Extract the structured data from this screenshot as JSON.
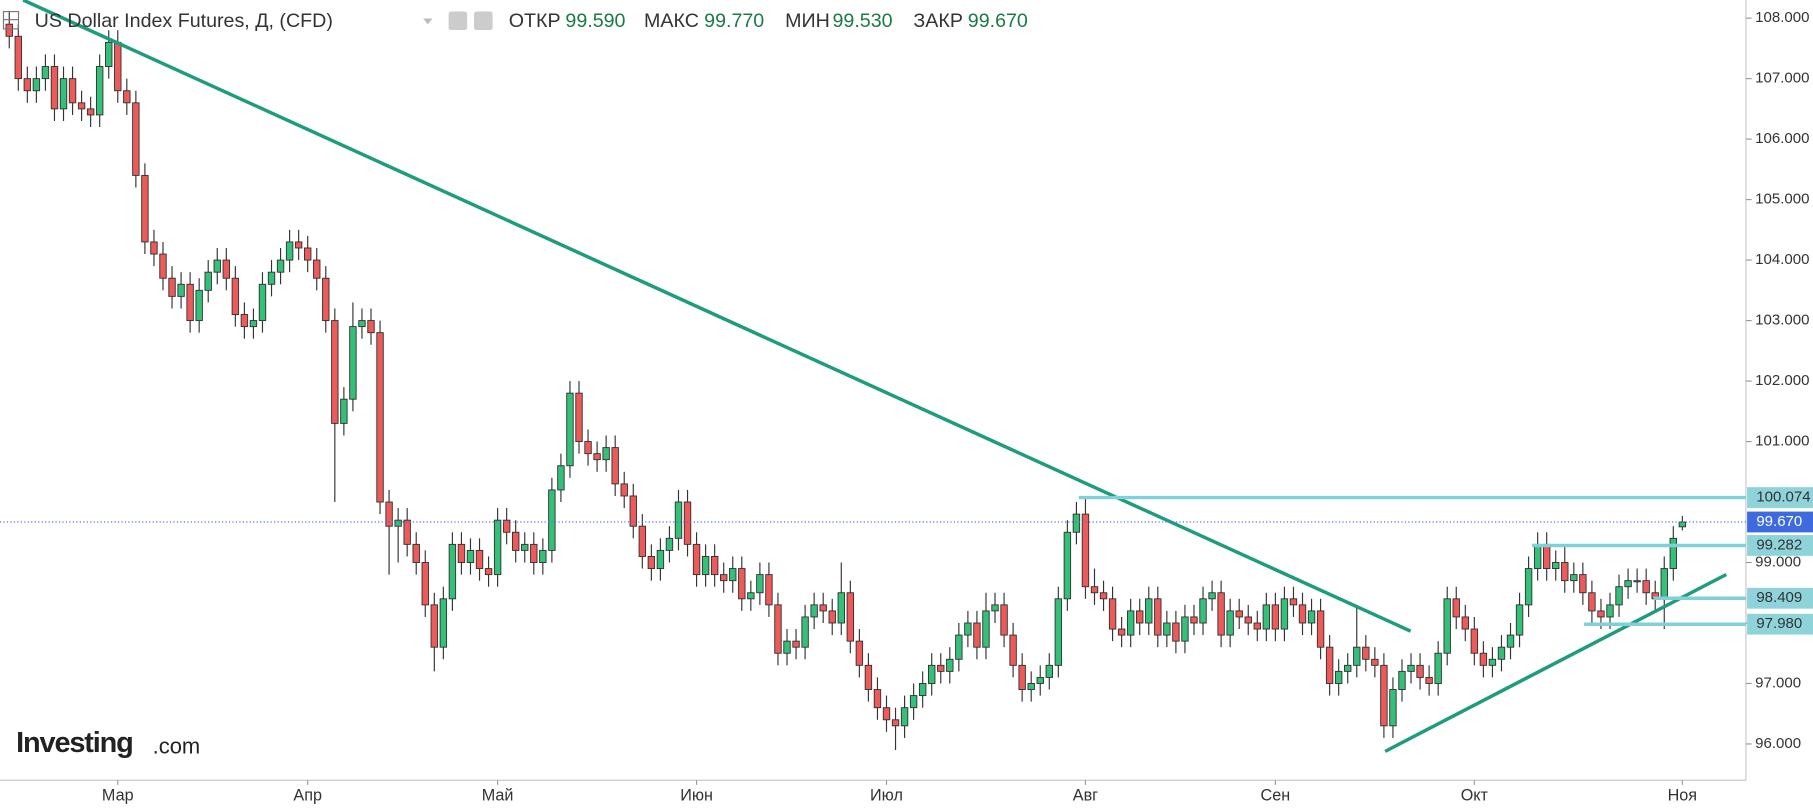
{
  "header": {
    "title": "US Dollar Index Futures, Д, (CFD)",
    "open_label": "ОТКР",
    "open": "99.590",
    "high_label": "МАКС",
    "high": "99.770",
    "low_label": "МИН",
    "low": "99.530",
    "close_label": "ЗАКР",
    "close": "99.670"
  },
  "logo": {
    "brand": "Investing",
    "suffix": ".com"
  },
  "chart_data": {
    "type": "candlestick",
    "up_color": "#35c07a",
    "down_color": "#ec5a5a",
    "grid": false,
    "ylim": [
      95.4,
      108.3
    ],
    "yticks": [
      {
        "value": 96,
        "label": "96.000"
      },
      {
        "value": 97,
        "label": "97.000"
      },
      {
        "value": 98,
        "label": "98.000"
      },
      {
        "value": 99,
        "label": "99.000"
      },
      {
        "value": 101,
        "label": "101.000"
      },
      {
        "value": 102,
        "label": "102.000"
      },
      {
        "value": 103,
        "label": "103.000"
      },
      {
        "value": 104,
        "label": "104.000"
      },
      {
        "value": 105,
        "label": "105.000"
      },
      {
        "value": 106,
        "label": "106.000"
      },
      {
        "value": 107,
        "label": "107.000"
      },
      {
        "value": 108,
        "label": "108.000"
      }
    ],
    "levels": [
      100.074,
      {
        "value": 99.67,
        "label": "99.670"
      },
      99.282,
      98.409,
      {
        "value": 97.98,
        "label": "97.980"
      }
    ],
    "categories": [
      null,
      null,
      null,
      null,
      null,
      null,
      null,
      null,
      null,
      null,
      null,
      null,
      "Мар",
      null,
      null,
      null,
      null,
      null,
      null,
      null,
      null,
      null,
      null,
      null,
      null,
      null,
      null,
      null,
      null,
      null,
      null,
      null,
      null,
      "Апр",
      null,
      null,
      null,
      null,
      null,
      null,
      null,
      null,
      null,
      null,
      null,
      null,
      null,
      null,
      null,
      null,
      null,
      null,
      null,
      null,
      "Май",
      null,
      null,
      null,
      null,
      null,
      null,
      null,
      null,
      null,
      null,
      null,
      null,
      null,
      null,
      null,
      null,
      null,
      null,
      null,
      null,
      null,
      "Июн",
      null,
      null,
      null,
      null,
      null,
      null,
      null,
      null,
      null,
      null,
      null,
      null,
      null,
      null,
      null,
      null,
      null,
      null,
      null,
      null,
      "Июл",
      null,
      null,
      null,
      null,
      null,
      null,
      null,
      null,
      null,
      null,
      null,
      null,
      null,
      null,
      null,
      null,
      null,
      null,
      null,
      null,
      null,
      "Авг",
      null,
      null,
      null,
      null,
      null,
      null,
      null,
      null,
      null,
      null,
      null,
      null,
      null,
      null,
      null,
      null,
      null,
      null,
      null,
      null,
      "Сен",
      null,
      null,
      null,
      null,
      null,
      null,
      null,
      null,
      null,
      null,
      null,
      null,
      null,
      null,
      null,
      null,
      null,
      null,
      null,
      null,
      null,
      "Окт",
      null,
      null,
      null,
      null,
      null,
      null,
      null,
      null,
      null,
      null,
      null,
      null,
      null,
      null,
      null,
      null,
      null,
      null,
      null,
      null,
      null,
      null,
      "Ноя"
    ],
    "candles": [
      [
        107.9,
        108.1,
        107.5,
        107.7
      ],
      [
        107.7,
        107.9,
        106.8,
        107.0
      ],
      [
        107.0,
        107.2,
        106.6,
        106.8
      ],
      [
        106.8,
        107.2,
        106.6,
        107.0
      ],
      [
        107.0,
        107.4,
        106.8,
        107.2
      ],
      [
        107.2,
        107.4,
        106.3,
        106.5
      ],
      [
        106.5,
        107.2,
        106.3,
        107.0
      ],
      [
        107.0,
        107.2,
        106.4,
        106.6
      ],
      [
        106.6,
        106.8,
        106.3,
        106.5
      ],
      [
        106.5,
        106.7,
        106.2,
        106.4
      ],
      [
        106.4,
        107.4,
        106.2,
        107.2
      ],
      [
        107.2,
        107.8,
        107.0,
        107.6
      ],
      [
        107.6,
        107.8,
        106.6,
        106.8
      ],
      [
        106.8,
        107.0,
        106.4,
        106.6
      ],
      [
        106.6,
        106.8,
        105.2,
        105.4
      ],
      [
        105.4,
        105.6,
        104.1,
        104.3
      ],
      [
        104.3,
        104.5,
        103.9,
        104.1
      ],
      [
        104.1,
        104.3,
        103.5,
        103.7
      ],
      [
        103.7,
        103.9,
        103.2,
        103.4
      ],
      [
        103.4,
        103.8,
        103.2,
        103.6
      ],
      [
        103.6,
        103.8,
        102.8,
        103.0
      ],
      [
        103.0,
        103.7,
        102.8,
        103.5
      ],
      [
        103.5,
        104.0,
        103.3,
        103.8
      ],
      [
        103.8,
        104.2,
        103.6,
        104.0
      ],
      [
        104.0,
        104.2,
        103.5,
        103.7
      ],
      [
        103.7,
        103.9,
        102.9,
        103.1
      ],
      [
        103.1,
        103.3,
        102.7,
        102.9
      ],
      [
        102.9,
        103.2,
        102.7,
        103.0
      ],
      [
        103.0,
        103.8,
        102.8,
        103.6
      ],
      [
        103.6,
        104.0,
        103.4,
        103.8
      ],
      [
        103.8,
        104.2,
        103.6,
        104.0
      ],
      [
        104.0,
        104.5,
        103.8,
        104.3
      ],
      [
        104.3,
        104.5,
        104.0,
        104.2
      ],
      [
        104.2,
        104.4,
        103.8,
        104.0
      ],
      [
        104.0,
        104.2,
        103.5,
        103.7
      ],
      [
        103.7,
        103.9,
        102.8,
        103.0
      ],
      [
        103.0,
        103.2,
        100.0,
        101.3
      ],
      [
        101.3,
        101.9,
        101.1,
        101.7
      ],
      [
        101.7,
        103.3,
        101.5,
        102.9
      ],
      [
        102.9,
        103.2,
        102.7,
        103.0
      ],
      [
        103.0,
        103.2,
        102.6,
        102.8
      ],
      [
        102.8,
        103.0,
        99.8,
        100.0
      ],
      [
        100.0,
        100.2,
        98.8,
        99.6
      ],
      [
        99.6,
        99.9,
        99.0,
        99.7
      ],
      [
        99.7,
        99.9,
        99.1,
        99.3
      ],
      [
        99.3,
        99.5,
        98.8,
        99.0
      ],
      [
        99.0,
        99.2,
        98.1,
        98.3
      ],
      [
        98.3,
        98.5,
        97.2,
        97.6
      ],
      [
        97.6,
        98.6,
        97.4,
        98.4
      ],
      [
        98.4,
        99.5,
        98.2,
        99.3
      ],
      [
        99.3,
        99.5,
        98.8,
        99.0
      ],
      [
        99.0,
        99.4,
        98.8,
        99.2
      ],
      [
        99.2,
        99.4,
        98.7,
        98.9
      ],
      [
        98.9,
        99.1,
        98.6,
        98.8
      ],
      [
        98.8,
        99.9,
        98.6,
        99.7
      ],
      [
        99.7,
        99.9,
        99.3,
        99.5
      ],
      [
        99.5,
        99.7,
        99.0,
        99.2
      ],
      [
        99.2,
        99.5,
        99.0,
        99.3
      ],
      [
        99.3,
        99.5,
        98.8,
        99.0
      ],
      [
        99.0,
        99.4,
        98.8,
        99.2
      ],
      [
        99.2,
        100.4,
        99.0,
        100.2
      ],
      [
        100.2,
        100.8,
        100.0,
        100.6
      ],
      [
        100.6,
        102.0,
        100.4,
        101.8
      ],
      [
        101.8,
        102.0,
        100.8,
        101.0
      ],
      [
        101.0,
        101.2,
        100.6,
        100.8
      ],
      [
        100.8,
        101.0,
        100.5,
        100.7
      ],
      [
        100.7,
        101.1,
        100.5,
        100.9
      ],
      [
        100.9,
        101.1,
        100.1,
        100.3
      ],
      [
        100.3,
        100.5,
        99.9,
        100.1
      ],
      [
        100.1,
        100.3,
        99.4,
        99.6
      ],
      [
        99.6,
        99.8,
        98.9,
        99.1
      ],
      [
        99.1,
        99.3,
        98.7,
        98.9
      ],
      [
        98.9,
        99.4,
        98.7,
        99.2
      ],
      [
        99.2,
        99.6,
        99.0,
        99.4
      ],
      [
        99.4,
        100.2,
        99.2,
        100.0
      ],
      [
        100.0,
        100.2,
        99.1,
        99.3
      ],
      [
        99.3,
        99.5,
        98.6,
        98.8
      ],
      [
        98.8,
        99.3,
        98.6,
        99.1
      ],
      [
        99.1,
        99.3,
        98.6,
        98.8
      ],
      [
        98.8,
        99.0,
        98.5,
        98.7
      ],
      [
        98.7,
        99.1,
        98.5,
        98.9
      ],
      [
        98.9,
        99.1,
        98.2,
        98.4
      ],
      [
        98.4,
        98.7,
        98.2,
        98.5
      ],
      [
        98.5,
        99.0,
        98.3,
        98.8
      ],
      [
        98.8,
        99.0,
        98.1,
        98.3
      ],
      [
        98.3,
        98.5,
        97.3,
        97.5
      ],
      [
        97.5,
        97.9,
        97.3,
        97.7
      ],
      [
        97.7,
        97.9,
        97.4,
        97.6
      ],
      [
        97.6,
        98.3,
        97.4,
        98.1
      ],
      [
        98.1,
        98.5,
        97.9,
        98.3
      ],
      [
        98.3,
        98.5,
        98.0,
        98.2
      ],
      [
        98.2,
        98.4,
        97.8,
        98.0
      ],
      [
        98.0,
        99.0,
        97.8,
        98.5
      ],
      [
        98.5,
        98.7,
        97.5,
        97.7
      ],
      [
        97.7,
        97.9,
        97.1,
        97.3
      ],
      [
        97.3,
        97.5,
        96.7,
        96.9
      ],
      [
        96.9,
        97.1,
        96.4,
        96.6
      ],
      [
        96.6,
        96.8,
        96.2,
        96.4
      ],
      [
        96.4,
        96.6,
        95.9,
        96.3
      ],
      [
        96.3,
        96.8,
        96.1,
        96.6
      ],
      [
        96.6,
        97.0,
        96.4,
        96.8
      ],
      [
        96.8,
        97.2,
        96.6,
        97.0
      ],
      [
        97.0,
        97.5,
        96.8,
        97.3
      ],
      [
        97.3,
        97.5,
        97.0,
        97.2
      ],
      [
        97.2,
        97.6,
        97.0,
        97.4
      ],
      [
        97.4,
        98.0,
        97.2,
        97.8
      ],
      [
        97.8,
        98.2,
        97.6,
        98.0
      ],
      [
        98.0,
        98.2,
        97.4,
        97.6
      ],
      [
        97.6,
        98.5,
        97.4,
        98.2
      ],
      [
        98.2,
        98.5,
        98.0,
        98.3
      ],
      [
        98.3,
        98.5,
        97.6,
        97.8
      ],
      [
        97.8,
        98.0,
        97.1,
        97.3
      ],
      [
        97.3,
        97.5,
        96.7,
        96.9
      ],
      [
        96.9,
        97.2,
        96.7,
        97.0
      ],
      [
        97.0,
        97.3,
        96.8,
        97.1
      ],
      [
        97.1,
        97.5,
        96.9,
        97.3
      ],
      [
        97.3,
        98.6,
        97.1,
        98.4
      ],
      [
        98.4,
        99.7,
        98.2,
        99.5
      ],
      [
        99.5,
        100.0,
        99.3,
        99.8
      ],
      [
        99.8,
        100.1,
        98.4,
        98.6
      ],
      [
        98.6,
        98.9,
        98.3,
        98.5
      ],
      [
        98.5,
        98.7,
        98.2,
        98.4
      ],
      [
        98.4,
        98.6,
        97.7,
        97.9
      ],
      [
        97.9,
        98.1,
        97.6,
        97.8
      ],
      [
        97.8,
        98.4,
        97.6,
        98.2
      ],
      [
        98.2,
        98.4,
        97.8,
        98.0
      ],
      [
        98.0,
        98.6,
        97.8,
        98.4
      ],
      [
        98.4,
        98.6,
        97.6,
        97.8
      ],
      [
        97.8,
        98.2,
        97.6,
        98.0
      ],
      [
        98.0,
        98.2,
        97.5,
        97.7
      ],
      [
        97.7,
        98.3,
        97.5,
        98.1
      ],
      [
        98.1,
        98.3,
        97.8,
        98.0
      ],
      [
        98.0,
        98.6,
        97.8,
        98.4
      ],
      [
        98.4,
        98.7,
        98.2,
        98.5
      ],
      [
        98.5,
        98.7,
        97.6,
        97.8
      ],
      [
        97.8,
        98.4,
        97.6,
        98.2
      ],
      [
        98.2,
        98.4,
        97.9,
        98.1
      ],
      [
        98.1,
        98.3,
        97.8,
        98.0
      ],
      [
        98.0,
        98.2,
        97.7,
        97.9
      ],
      [
        97.9,
        98.5,
        97.7,
        98.3
      ],
      [
        98.3,
        98.5,
        97.7,
        97.9
      ],
      [
        97.9,
        98.6,
        97.7,
        98.4
      ],
      [
        98.4,
        98.6,
        98.1,
        98.3
      ],
      [
        98.3,
        98.5,
        97.8,
        98.0
      ],
      [
        98.0,
        98.4,
        97.8,
        98.2
      ],
      [
        98.2,
        98.4,
        97.4,
        97.6
      ],
      [
        97.6,
        97.8,
        96.8,
        97.0
      ],
      [
        97.0,
        97.4,
        96.8,
        97.2
      ],
      [
        97.2,
        97.5,
        97.0,
        97.3
      ],
      [
        97.3,
        98.3,
        97.1,
        97.6
      ],
      [
        97.6,
        97.8,
        97.2,
        97.4
      ],
      [
        97.4,
        97.6,
        97.1,
        97.3
      ],
      [
        97.3,
        97.5,
        96.1,
        96.3
      ],
      [
        96.3,
        97.1,
        96.1,
        96.9
      ],
      [
        96.9,
        97.4,
        96.7,
        97.2
      ],
      [
        97.2,
        97.5,
        97.0,
        97.3
      ],
      [
        97.3,
        97.5,
        96.9,
        97.1
      ],
      [
        97.1,
        97.3,
        96.8,
        97.0
      ],
      [
        97.0,
        97.7,
        96.8,
        97.5
      ],
      [
        97.5,
        98.6,
        97.3,
        98.4
      ],
      [
        98.4,
        98.6,
        97.9,
        98.1
      ],
      [
        98.1,
        98.3,
        97.7,
        97.9
      ],
      [
        97.9,
        98.1,
        97.3,
        97.5
      ],
      [
        97.5,
        97.7,
        97.1,
        97.3
      ],
      [
        97.3,
        97.6,
        97.1,
        97.4
      ],
      [
        97.4,
        97.8,
        97.2,
        97.6
      ],
      [
        97.6,
        98.0,
        97.4,
        97.8
      ],
      [
        97.8,
        98.5,
        97.6,
        98.3
      ],
      [
        98.3,
        99.1,
        98.1,
        98.9
      ],
      [
        98.9,
        99.5,
        98.7,
        99.3
      ],
      [
        99.3,
        99.5,
        98.7,
        98.9
      ],
      [
        98.9,
        99.2,
        98.7,
        99.0
      ],
      [
        99.0,
        99.3,
        98.5,
        98.7
      ],
      [
        98.7,
        99.0,
        98.5,
        98.8
      ],
      [
        98.8,
        99.0,
        98.3,
        98.5
      ],
      [
        98.5,
        98.7,
        98.0,
        98.2
      ],
      [
        98.2,
        98.4,
        97.9,
        98.1
      ],
      [
        98.1,
        98.5,
        97.9,
        98.3
      ],
      [
        98.3,
        98.8,
        98.1,
        98.6
      ],
      [
        98.6,
        98.9,
        98.4,
        98.7
      ],
      [
        98.7,
        98.9,
        98.5,
        98.7
      ],
      [
        98.7,
        98.9,
        98.3,
        98.5
      ],
      [
        98.5,
        98.7,
        98.2,
        98.4
      ],
      [
        98.4,
        99.1,
        97.9,
        98.9
      ],
      [
        98.9,
        99.6,
        98.7,
        99.4
      ],
      [
        99.59,
        99.77,
        99.53,
        99.67
      ]
    ]
  }
}
